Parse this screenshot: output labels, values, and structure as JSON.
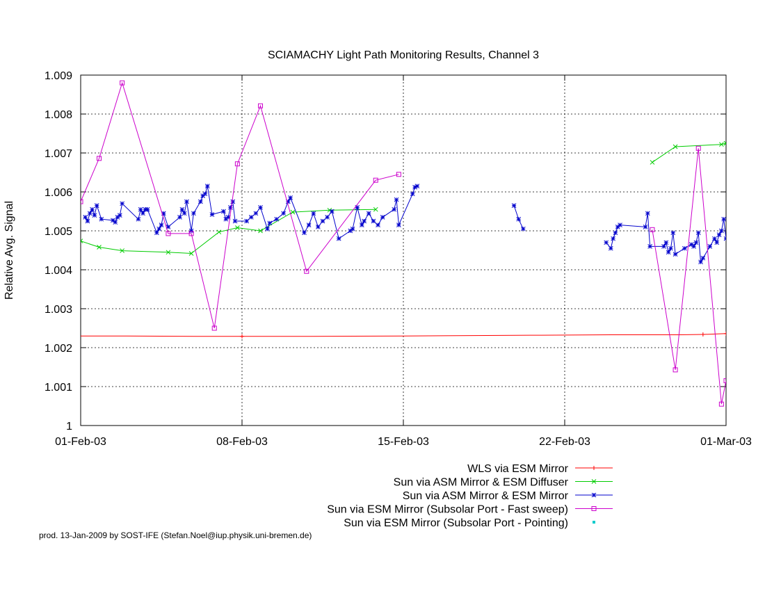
{
  "footer": {
    "credit": "prod. 13-Jan-2009 by SOST-IFE (Stefan.Noel@iup.physik.uni-bremen.de)"
  },
  "chart_data": {
    "type": "line",
    "title": "SCIAMACHY Light Path Monitoring Results, Channel 3",
    "xlabel": "",
    "ylabel": "Relative Avg. Signal",
    "x_type": "date",
    "xlim": [
      "2003-02-01",
      "2003-03-01"
    ],
    "ylim": [
      1.0,
      1.009
    ],
    "x_ticks": [
      {
        "x": "2003-02-01",
        "label": "01-Feb-03"
      },
      {
        "x": "2003-02-08",
        "label": "08-Feb-03"
      },
      {
        "x": "2003-02-15",
        "label": "15-Feb-03"
      },
      {
        "x": "2003-02-22",
        "label": "22-Feb-03"
      },
      {
        "x": "2003-03-01",
        "label": "01-Mar-03"
      }
    ],
    "y_ticks": [
      {
        "y": 1.0,
        "label": "1"
      },
      {
        "y": 1.001,
        "label": "1.001"
      },
      {
        "y": 1.002,
        "label": "1.002"
      },
      {
        "y": 1.003,
        "label": "1.003"
      },
      {
        "y": 1.004,
        "label": "1.004"
      },
      {
        "y": 1.005,
        "label": "1.005"
      },
      {
        "y": 1.006,
        "label": "1.006"
      },
      {
        "y": 1.007,
        "label": "1.007"
      },
      {
        "y": 1.008,
        "label": "1.008"
      },
      {
        "y": 1.009,
        "label": "1.009"
      }
    ],
    "grid": "vertical dashed lines at x ticks, horizontal dashed lines at y ticks",
    "legend_position": "bottom-right, below plot",
    "series": [
      {
        "name": "WLS via ESM Mirror",
        "color": "#ff0000",
        "marker": "plus",
        "show_markers": false,
        "points": [
          [
            "2003-02-01",
            1.0023
          ],
          [
            "2003-02-03",
            1.0023
          ],
          [
            "2003-02-06",
            1.00229
          ],
          [
            "2003-02-08",
            1.00229
          ],
          [
            "2003-02-11",
            1.00229
          ],
          [
            "2003-02-15",
            1.0023
          ],
          [
            "2003-02-18",
            1.00231
          ],
          [
            "2003-02-21",
            1.00232
          ],
          [
            "2003-02-24",
            1.00233
          ],
          [
            "2003-02-27",
            1.00233
          ],
          [
            "2003-02-28",
            1.00234
          ],
          [
            "2003-03-01",
            1.00236
          ]
        ],
        "marked_points": [
          [
            "2003-02-08",
            1.00229
          ],
          [
            "2003-02-28",
            1.00234
          ],
          [
            "2003-03-01",
            1.00236
          ]
        ]
      },
      {
        "name": "Sun via ASM Mirror & ESM Diffuser",
        "color": "#00cc00",
        "marker": "x",
        "show_markers": true,
        "segments": [
          [
            [
              "2003-02-01",
              1.00474
            ],
            [
              "2003-02-01.8",
              1.00458
            ],
            [
              "2003-02-02.8",
              1.00449
            ],
            [
              "2003-02-04.8",
              1.00445
            ],
            [
              "2003-02-05.8",
              1.00442
            ],
            [
              "2003-02-07",
              1.00497
            ],
            [
              "2003-02-07.8",
              1.00508
            ],
            [
              "2003-02-08.8",
              1.005
            ],
            [
              "2003-02-10.2",
              1.00548
            ],
            [
              "2003-02-11.8",
              1.00553
            ],
            [
              "2003-02-13.8",
              1.00555
            ]
          ],
          [
            [
              "2003-02-25.8",
              1.00676
            ],
            [
              "2003-02-26.8",
              1.00716
            ],
            [
              "2003-02-28.8",
              1.00722
            ],
            [
              "2003-03-01",
              1.00725
            ]
          ]
        ]
      },
      {
        "name": "Sun via ASM Mirror & ESM Mirror",
        "color": "#0000cc",
        "marker": "star",
        "show_markers": true,
        "segments": [
          [
            [
              "2003-02-01.2",
              1.00535
            ],
            [
              "2003-02-01.3",
              1.00525
            ],
            [
              "2003-02-01.4",
              1.00545
            ],
            [
              "2003-02-01.5",
              1.00555
            ],
            [
              "2003-02-01.6",
              1.0054
            ],
            [
              "2003-02-01.7",
              1.00565
            ],
            [
              "2003-02-01.9",
              1.0053
            ],
            [
              "2003-02-02.4",
              1.00527
            ],
            [
              "2003-02-02.5",
              1.00522
            ],
            [
              "2003-02-02.6",
              1.00535
            ],
            [
              "2003-02-02.7",
              1.0054
            ],
            [
              "2003-02-02.8",
              1.0057
            ],
            [
              "2003-02-03.5",
              1.0053
            ],
            [
              "2003-02-03.6",
              1.00555
            ],
            [
              "2003-02-03.7",
              1.00545
            ],
            [
              "2003-02-03.8",
              1.00555
            ],
            [
              "2003-02-03.9",
              1.00555
            ],
            [
              "2003-02-04.3",
              1.00495
            ],
            [
              "2003-02-04.4",
              1.00505
            ],
            [
              "2003-02-04.5",
              1.00515
            ],
            [
              "2003-02-04.6",
              1.00545
            ],
            [
              "2003-02-04.8",
              1.0051
            ],
            [
              "2003-02-05.3",
              1.00535
            ],
            [
              "2003-02-05.4",
              1.00555
            ],
            [
              "2003-02-05.5",
              1.00545
            ],
            [
              "2003-02-05.6",
              1.00575
            ],
            [
              "2003-02-05.8",
              1.005
            ],
            [
              "2003-02-05.9",
              1.00545
            ],
            [
              "2003-02-06.2",
              1.00575
            ],
            [
              "2003-02-06.3",
              1.0059
            ],
            [
              "2003-02-06.4",
              1.00595
            ],
            [
              "2003-02-06.5",
              1.00615
            ],
            [
              "2003-02-06.7",
              1.00542
            ],
            [
              "2003-02-07.2",
              1.0055
            ],
            [
              "2003-02-07.3",
              1.0053
            ],
            [
              "2003-02-07.4",
              1.00535
            ],
            [
              "2003-02-07.5",
              1.0056
            ],
            [
              "2003-02-07.6",
              1.00575
            ],
            [
              "2003-02-07.7",
              1.00525
            ],
            [
              "2003-02-08.2",
              1.00525
            ],
            [
              "2003-02-08.4",
              1.00535
            ],
            [
              "2003-02-08.6",
              1.00545
            ],
            [
              "2003-02-08.8",
              1.0056
            ],
            [
              "2003-02-09.1",
              1.00505
            ],
            [
              "2003-02-09.2",
              1.0052
            ],
            [
              "2003-02-09.5",
              1.0053
            ],
            [
              "2003-02-09.8",
              1.00545
            ],
            [
              "2003-02-10.0",
              1.00575
            ],
            [
              "2003-02-10.1",
              1.00585
            ],
            [
              "2003-02-10.7",
              1.00495
            ],
            [
              "2003-02-10.9",
              1.00515
            ],
            [
              "2003-02-11.1",
              1.00545
            ],
            [
              "2003-02-11.3",
              1.0051
            ],
            [
              "2003-02-11.5",
              1.00525
            ],
            [
              "2003-02-11.7",
              1.00535
            ],
            [
              "2003-02-11.9",
              1.0055
            ],
            [
              "2003-02-12.2",
              1.0048
            ],
            [
              "2003-02-12.7",
              1.005
            ],
            [
              "2003-02-12.8",
              1.00505
            ],
            [
              "2003-02-13.0",
              1.0056
            ],
            [
              "2003-02-13.2",
              1.00515
            ],
            [
              "2003-02-13.3",
              1.00525
            ],
            [
              "2003-02-13.5",
              1.00545
            ],
            [
              "2003-02-13.7",
              1.00525
            ],
            [
              "2003-02-13.9",
              1.00515
            ],
            [
              "2003-02-14.1",
              1.00535
            ],
            [
              "2003-02-14.6",
              1.00555
            ],
            [
              "2003-02-14.7",
              1.0058
            ],
            [
              "2003-02-14.8",
              1.00515
            ],
            [
              "2003-02-15.4",
              1.00595
            ],
            [
              "2003-02-15.5",
              1.00612
            ],
            [
              "2003-02-15.6",
              1.00615
            ]
          ],
          [
            [
              "2003-02-19.8",
              1.00565
            ],
            [
              "2003-02-20.0",
              1.0053
            ],
            [
              "2003-02-20.2",
              1.00505
            ]
          ],
          [
            [
              "2003-02-23.8",
              1.0047
            ],
            [
              "2003-02-24.0",
              1.00455
            ],
            [
              "2003-02-24.1",
              1.0048
            ],
            [
              "2003-02-24.2",
              1.00495
            ],
            [
              "2003-02-24.3",
              1.0051
            ],
            [
              "2003-02-24.4",
              1.00515
            ],
            [
              "2003-02-25.5",
              1.0051
            ],
            [
              "2003-02-25.6",
              1.00545
            ],
            [
              "2003-02-25.7",
              1.0046
            ],
            [
              "2003-02-26.3",
              1.0046
            ],
            [
              "2003-02-26.4",
              1.0047
            ],
            [
              "2003-02-26.5",
              1.00445
            ],
            [
              "2003-02-26.6",
              1.00455
            ],
            [
              "2003-02-26.7",
              1.00495
            ],
            [
              "2003-02-26.8",
              1.0044
            ],
            [
              "2003-02-27.2",
              1.00455
            ],
            [
              "2003-02-27.5",
              1.00465
            ],
            [
              "2003-02-27.6",
              1.0046
            ],
            [
              "2003-02-27.7",
              1.0047
            ],
            [
              "2003-02-27.8",
              1.00495
            ],
            [
              "2003-02-27.9",
              1.0042
            ],
            [
              "2003-02-28.0",
              1.0043
            ],
            [
              "2003-02-28.3",
              1.0046
            ],
            [
              "2003-02-28.5",
              1.0048
            ],
            [
              "2003-02-28.6",
              1.0047
            ],
            [
              "2003-02-28.7",
              1.0049
            ],
            [
              "2003-02-28.8",
              1.005
            ],
            [
              "2003-02-28.9",
              1.0053
            ],
            [
              "2003-03-01",
              1.0048
            ]
          ]
        ]
      },
      {
        "name": "Sun via ESM Mirror (Subsolar Port - Fast sweep)",
        "color": "#cc00cc",
        "marker": "square",
        "show_markers": true,
        "segments": [
          [
            [
              "2003-02-01",
              1.00575
            ],
            [
              "2003-02-01.8",
              1.00686
            ],
            [
              "2003-02-02.8",
              1.0088
            ],
            [
              "2003-02-04.8",
              1.00493
            ],
            [
              "2003-02-05.8",
              1.00493
            ],
            [
              "2003-02-06.8",
              1.0025
            ],
            [
              "2003-02-07.8",
              1.00672
            ],
            [
              "2003-02-08.8",
              1.00821
            ],
            [
              "2003-02-10.8",
              1.00396
            ],
            [
              "2003-02-13.8",
              1.0063
            ],
            [
              "2003-02-14.8",
              1.00645
            ]
          ],
          [
            [
              "2003-02-25.8",
              1.00503
            ],
            [
              "2003-02-26.8",
              1.00143
            ],
            [
              "2003-02-27.8",
              1.00712
            ],
            [
              "2003-02-28.8",
              1.00055
            ],
            [
              "2003-03-01",
              1.00115
            ]
          ]
        ]
      },
      {
        "name": "Sun via ESM Mirror (Subsolar Port - Pointing)",
        "color": "#00cccc",
        "marker": "dot",
        "show_markers": true,
        "segments": []
      }
    ]
  }
}
